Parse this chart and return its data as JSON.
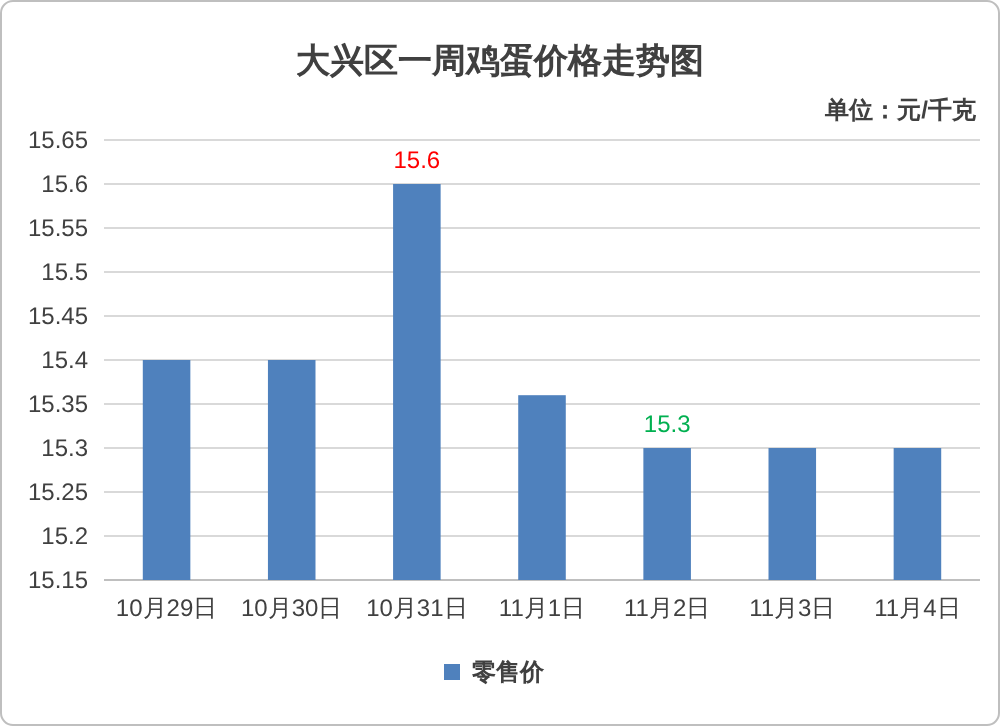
{
  "chart_data": {
    "type": "bar",
    "title": "大兴区一周鸡蛋价格走势图",
    "annotations": [
      "单位：元/千克"
    ],
    "categories": [
      "10月29日",
      "10月30日",
      "10月31日",
      "11月1日",
      "11月2日",
      "11月3日",
      "11月4日"
    ],
    "series": [
      {
        "name": "零售价",
        "color": "#4f81bd",
        "values": [
          15.4,
          15.4,
          15.6,
          15.36,
          15.3,
          15.3,
          15.3
        ],
        "value_labels": [
          null,
          null,
          "15.6",
          null,
          "15.3",
          null,
          null
        ]
      }
    ],
    "ylim": [
      15.15,
      15.65
    ],
    "yticks": [
      15.15,
      15.2,
      15.25,
      15.3,
      15.35,
      15.4,
      15.45,
      15.5,
      15.55,
      15.6,
      15.65
    ],
    "grid": "y",
    "legend": "bottom"
  }
}
